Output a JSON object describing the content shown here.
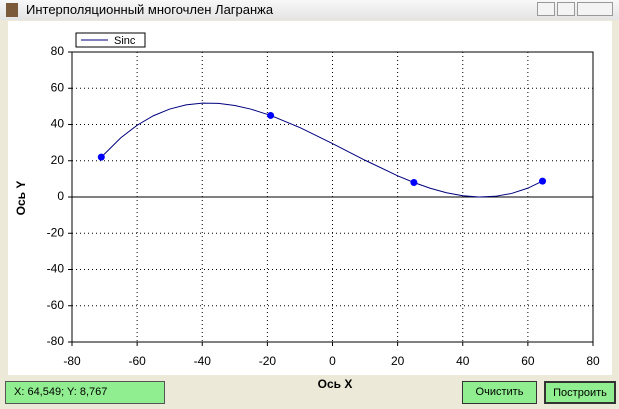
{
  "window": {
    "title": "Интерполяционный многочлен Лагранжа"
  },
  "chart_data": {
    "type": "line",
    "xlabel": "Ось X",
    "ylabel": "Ось Y",
    "xlim": [
      -80,
      80
    ],
    "xticks": [
      -80,
      -60,
      -40,
      -20,
      0,
      20,
      40,
      60,
      80
    ],
    "ylim": [
      -80,
      80
    ],
    "yticks": [
      -80,
      -60,
      -40,
      -20,
      0,
      20,
      40,
      60,
      80
    ],
    "grid": true,
    "legend": "upper left",
    "series": [
      {
        "name": "Sinc",
        "color": "#000080",
        "x": [
          -71,
          -65,
          -60,
          -55,
          -50,
          -45,
          -40,
          -35,
          -30,
          -25,
          -19,
          -10,
          0,
          10,
          20,
          25,
          30,
          35,
          40,
          45,
          50,
          55,
          60,
          64.5
        ],
        "values": [
          22,
          32.68,
          39.59,
          44.83,
          48.52,
          50.8,
          51.81,
          51.66,
          50.5,
          48.45,
          45,
          38.29,
          29.48,
          20.27,
          11.71,
          8,
          4.84,
          2.37,
          0.72,
          0.01,
          0.38,
          1.96,
          4.88,
          8.77
        ]
      }
    ],
    "points": {
      "color": "#0000ff",
      "x": [
        -71,
        -19,
        25,
        64.5
      ],
      "values": [
        22,
        45,
        8,
        8.77
      ]
    }
  },
  "status": "X: 64,549; Y: 8,767",
  "buttons": [
    "Очистить",
    "Построить"
  ]
}
